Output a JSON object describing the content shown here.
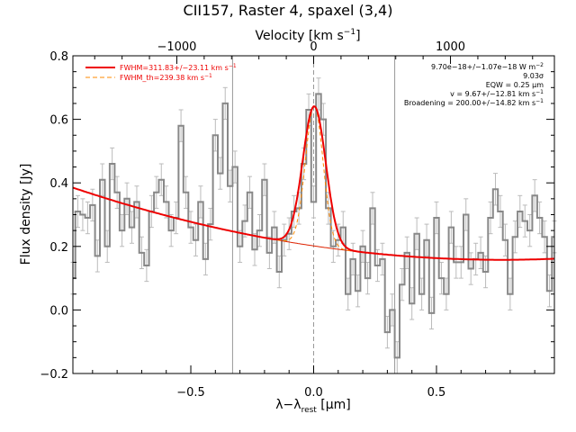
{
  "chart_data": {
    "type": "line",
    "title": "CII157, Raster 4, spaxel (3,4)",
    "xlabel_main": "λ−λ",
    "xlabel_sub": "rest",
    "xlabel_unit": " [μm]",
    "ylabel": "Flux density [Jy]",
    "top_axis_label": "Velocity [km s",
    "top_axis_label_sup": "−1",
    "top_axis_label_end": "]",
    "top_axis_ticks": [
      {
        "label": "−1000",
        "x": -0.557
      },
      {
        "label": "0",
        "x": 0.0
      },
      {
        "label": "1000",
        "x": 0.557
      }
    ],
    "top_axis_minor_step_x": 0.1114,
    "xlim": [
      -0.98,
      0.98
    ],
    "ylim": [
      -0.2,
      0.8
    ],
    "x_tick_labels": [
      {
        "label": "−0.5",
        "x": -0.5
      },
      {
        "label": "0.0",
        "x": 0.0
      },
      {
        "label": "0.5",
        "x": 0.5
      }
    ],
    "y_tick_labels": [
      "−0.2",
      "0.0",
      "0.2",
      "0.4",
      "0.6",
      "0.8"
    ],
    "y_ticks": [
      -0.2,
      0.0,
      0.2,
      0.4,
      0.6,
      0.8
    ],
    "vlines": [
      -0.33,
      0.0,
      0.33
    ],
    "data_step_x": [
      -0.98,
      -0.96,
      -0.94,
      -0.92,
      -0.9,
      -0.88,
      -0.86,
      -0.84,
      -0.82,
      -0.8,
      -0.78,
      -0.76,
      -0.74,
      -0.72,
      -0.7,
      -0.68,
      -0.66,
      -0.64,
      -0.62,
      -0.6,
      -0.58,
      -0.56,
      -0.54,
      -0.52,
      -0.5,
      -0.48,
      -0.46,
      -0.44,
      -0.42,
      -0.4,
      -0.38,
      -0.36,
      -0.34,
      -0.32,
      -0.3,
      -0.28,
      -0.26,
      -0.24,
      -0.22,
      -0.2,
      -0.18,
      -0.16,
      -0.14,
      -0.12,
      -0.1,
      -0.08,
      -0.06,
      -0.04,
      -0.02,
      0.0,
      0.02,
      0.04,
      0.06,
      0.08,
      0.1,
      0.12,
      0.14,
      0.16,
      0.18,
      0.2,
      0.22,
      0.24,
      0.26,
      0.28,
      0.3,
      0.32,
      0.34,
      0.36,
      0.38,
      0.4,
      0.42,
      0.44,
      0.46,
      0.48,
      0.5,
      0.52,
      0.54,
      0.56,
      0.58,
      0.6,
      0.62,
      0.64,
      0.66,
      0.68,
      0.7,
      0.72,
      0.74,
      0.76,
      0.78,
      0.8,
      0.82,
      0.84,
      0.86,
      0.88,
      0.9,
      0.92,
      0.94,
      0.96,
      0.98
    ],
    "data_step_y": [
      0.1,
      0.31,
      0.3,
      0.29,
      0.33,
      0.17,
      0.41,
      0.2,
      0.46,
      0.37,
      0.25,
      0.35,
      0.26,
      0.34,
      0.18,
      0.14,
      0.31,
      0.37,
      0.41,
      0.34,
      0.25,
      0.29,
      0.58,
      0.37,
      0.26,
      0.22,
      0.34,
      0.16,
      0.27,
      0.55,
      0.43,
      0.65,
      0.39,
      0.45,
      0.2,
      0.28,
      0.37,
      0.19,
      0.25,
      0.41,
      0.18,
      0.26,
      0.12,
      0.22,
      0.24,
      0.31,
      0.32,
      0.46,
      0.63,
      0.34,
      0.68,
      0.6,
      0.32,
      0.2,
      0.22,
      0.26,
      0.05,
      0.16,
      0.06,
      0.2,
      0.1,
      0.32,
      0.14,
      0.16,
      -0.07,
      0.0,
      -0.15,
      0.08,
      0.18,
      0.02,
      0.24,
      0.05,
      0.22,
      -0.01,
      0.29,
      0.1,
      0.05,
      0.26,
      0.15,
      0.15,
      0.3,
      0.13,
      0.16,
      0.18,
      0.12,
      0.29,
      0.38,
      0.31,
      0.22,
      0.05,
      0.23,
      0.31,
      0.28,
      0.25,
      0.36,
      0.29,
      0.23,
      0.06,
      0.23
    ],
    "errorbar_sigma": 0.05,
    "fit_baseline": {
      "a0": 0.2016,
      "a1": -0.1142,
      "a2": 0.0745
    },
    "fit_gaussian": {
      "amplitude": 0.44,
      "center": 0.0027,
      "fwhm": 0.11
    },
    "fit_th_gaussian": {
      "amplitude": 0.44,
      "center": 0.0027,
      "fwhm": 0.085
    },
    "legend": [
      {
        "label": "FWHM=311.83+/−23.11 km s",
        "sup": "−1",
        "style": "solid"
      },
      {
        "label": "FWHM_th=239.38 km s",
        "sup": "−1",
        "style": "dashed"
      }
    ],
    "annotations": [
      {
        "text": "9.70e−18+/−1.07e−18 W m",
        "sup": "−2"
      },
      {
        "text": "9.03σ",
        "sup": ""
      },
      {
        "text": "EQW = 0.25 μm",
        "sup": ""
      },
      {
        "text": "v = 9.67+/−12.81 km s",
        "sup": "−1"
      },
      {
        "text": "Broadening = 200.00+/−14.82 km s",
        "sup": "−1"
      }
    ],
    "colors": {
      "data": "#888888",
      "errorbar": "#bbbbbb",
      "fit": "#ee0000",
      "fit_thin": "#dd2200",
      "dash": "#ff8800",
      "vline": "#999999"
    }
  }
}
